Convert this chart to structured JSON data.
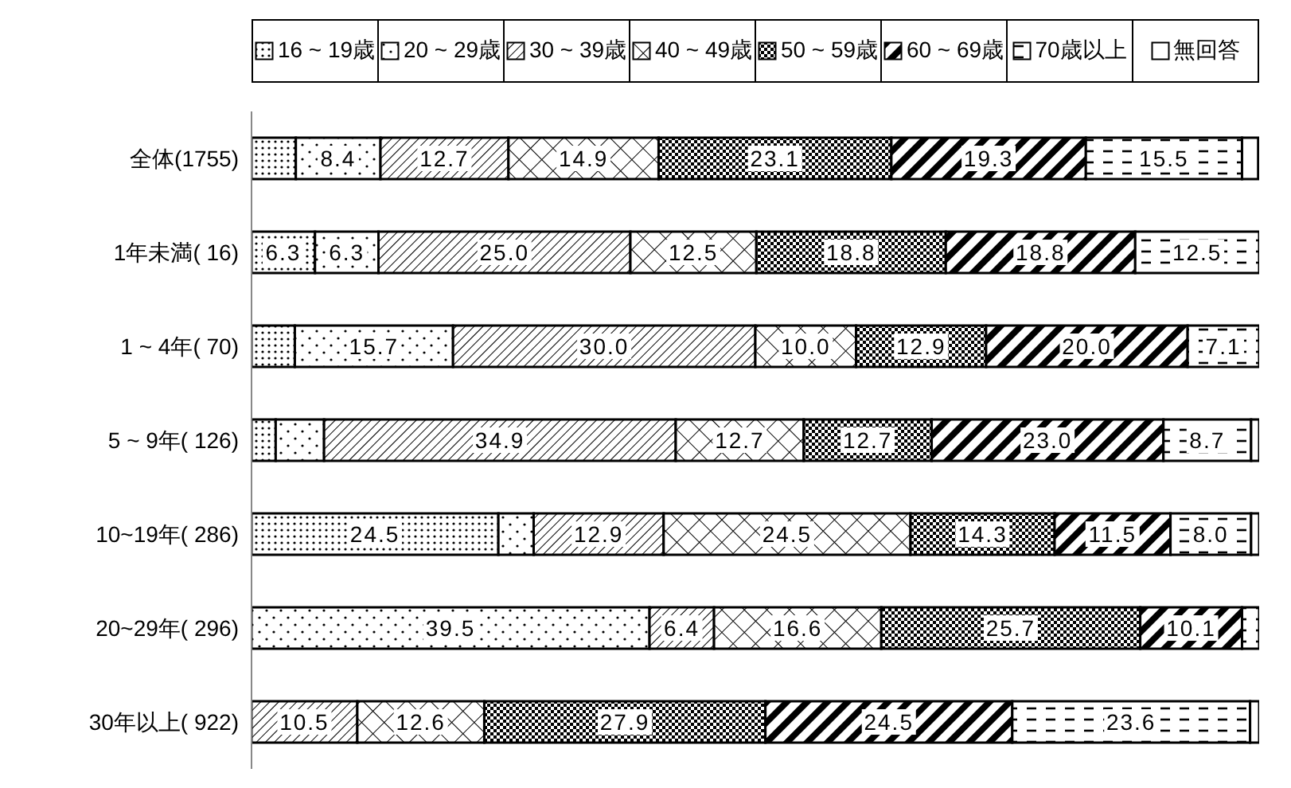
{
  "chart_data": {
    "type": "bar",
    "orientation": "horizontal",
    "stacked": true,
    "legend": "top",
    "xlim": [
      0,
      100
    ],
    "tick_labels": "y",
    "categories": [
      "全体(1755)",
      "1年未満(  16)",
      "1 ~ 4年(  70)",
      "5 ~ 9年( 126)",
      "10~19年( 286)",
      "20~29年( 296)",
      "30年以上( 922)"
    ],
    "series": [
      {
        "name": "16 ~ 19歳",
        "color": "#000000",
        "values": [
          4.4,
          6.3,
          4.3,
          2.4,
          24.5,
          0,
          0
        ],
        "value_labels": [
          null,
          "6.3",
          null,
          null,
          "24.5",
          null,
          null
        ]
      },
      {
        "name": "20 ~ 29歳",
        "color": "#000000",
        "values": [
          8.4,
          6.3,
          15.7,
          4.8,
          3.5,
          39.5,
          0
        ],
        "value_labels": [
          "8.4",
          "6.3",
          "15.7",
          null,
          null,
          "39.5",
          null
        ]
      },
      {
        "name": "30 ~ 39歳",
        "color": "#000000",
        "values": [
          12.7,
          25.0,
          30.0,
          34.9,
          12.9,
          6.4,
          10.5
        ],
        "value_labels": [
          "12.7",
          "25.0",
          "30.0",
          "34.9",
          "12.9",
          "6.4",
          "10.5"
        ]
      },
      {
        "name": "40 ~ 49歳",
        "color": "#000000",
        "values": [
          14.9,
          12.5,
          10.0,
          12.7,
          24.5,
          16.6,
          12.6
        ],
        "value_labels": [
          "14.9",
          "12.5",
          "10.0",
          "12.7",
          "24.5",
          "16.6",
          "12.6"
        ]
      },
      {
        "name": "50 ~ 59歳",
        "color": "#000000",
        "values": [
          23.1,
          18.8,
          12.9,
          12.7,
          14.3,
          25.7,
          27.9
        ],
        "value_labels": [
          "23.1",
          "18.8",
          "12.9",
          "12.7",
          "14.3",
          "25.7",
          "27.9"
        ]
      },
      {
        "name": "60 ~ 69歳",
        "color": "#000000",
        "values": [
          19.3,
          18.8,
          20.0,
          23.0,
          11.5,
          10.1,
          24.5
        ],
        "value_labels": [
          "19.3",
          "18.8",
          "20.0",
          "23.0",
          "11.5",
          "10.1",
          "24.5"
        ]
      },
      {
        "name": "70歳以上",
        "color": "#000000",
        "values": [
          15.5,
          12.5,
          7.1,
          8.7,
          8.0,
          1.7,
          23.6
        ],
        "value_labels": [
          "15.5",
          "12.5",
          "7.1",
          "8.7",
          "8.0",
          null,
          "23.6"
        ]
      },
      {
        "name": "無回答",
        "color": "#000000",
        "values": [
          1.6,
          0,
          0,
          0.8,
          0.8,
          0,
          0.9
        ],
        "value_labels": [
          null,
          null,
          null,
          null,
          null,
          null,
          null
        ]
      }
    ]
  }
}
